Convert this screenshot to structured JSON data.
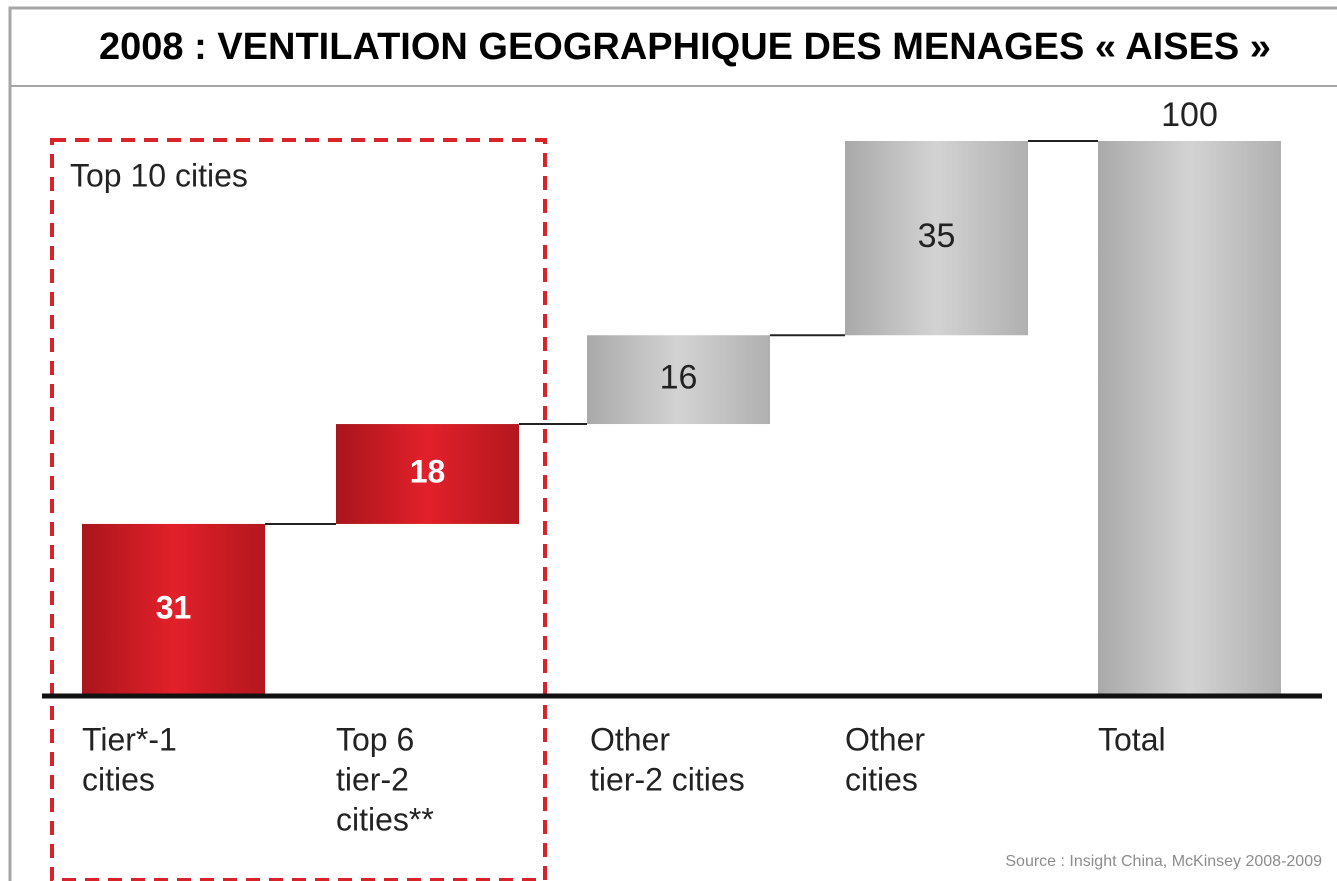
{
  "chart_data": {
    "type": "waterfall",
    "title": "2008 : VENTILATION GEOGRAPHIQUE DES MENAGES « AISES »",
    "annotation": "Top 10 cities",
    "source": "Source : Insight China, McKinsey 2008-2009",
    "categories": [
      [
        "Tier*-1",
        "cities"
      ],
      [
        "Top 6",
        "tier-2",
        "cities**"
      ],
      [
        "Other",
        "tier-2 cities"
      ],
      [
        "Other",
        "cities"
      ],
      [
        "Total"
      ]
    ],
    "values": [
      31,
      18,
      16,
      35,
      100
    ],
    "is_total": [
      false,
      false,
      false,
      false,
      true
    ],
    "colors": [
      "red",
      "red",
      "gray",
      "gray",
      "gray"
    ],
    "ylim": [
      0,
      100
    ]
  }
}
